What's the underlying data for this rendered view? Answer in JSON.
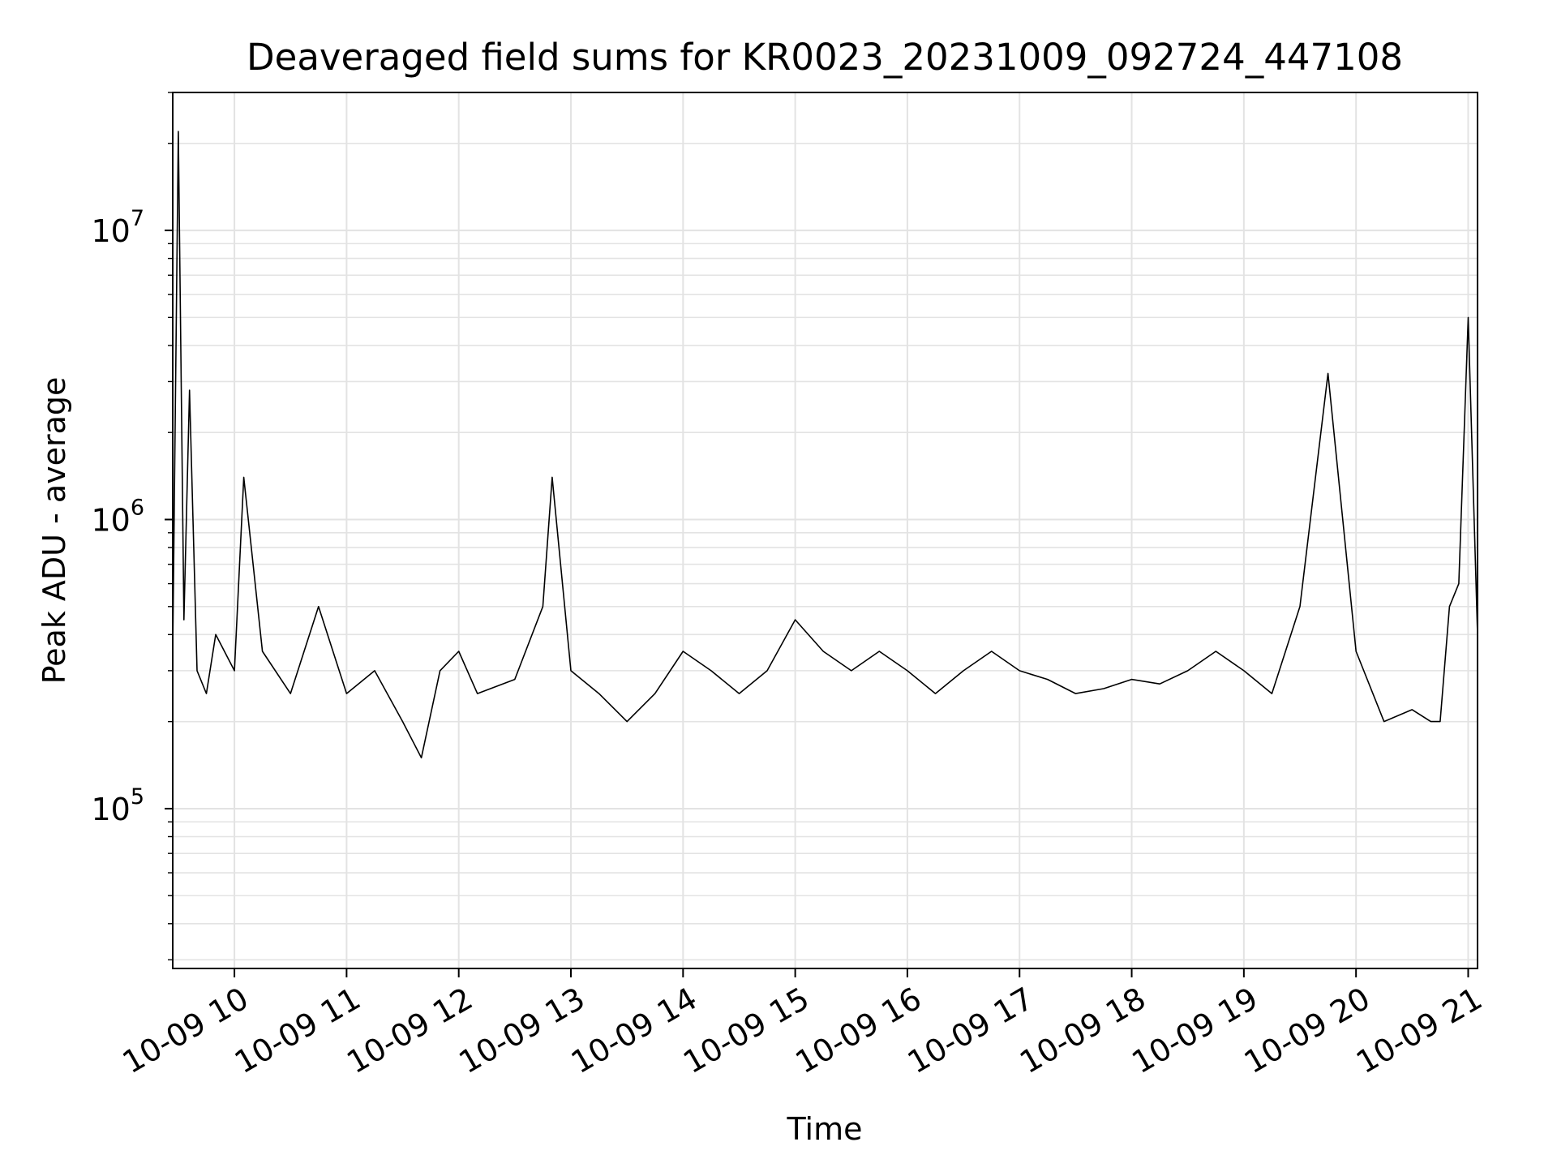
{
  "chart_data": {
    "type": "line",
    "title": "Deaveraged field sums for KR0023_20231009_092724_447108",
    "xlabel": "Time",
    "ylabel": "Peak ADU - average",
    "y_scale": "log",
    "grid": true,
    "x_ticks": [
      "10-09 10",
      "10-09 11",
      "10-09 12",
      "10-09 13",
      "10-09 14",
      "10-09 15",
      "10-09 16",
      "10-09 17",
      "10-09 18",
      "10-09 19",
      "10-09 20",
      "10-09 21"
    ],
    "y_ticks": [
      {
        "base": "10",
        "exp": "5",
        "value": 100000
      },
      {
        "base": "10",
        "exp": "6",
        "value": 1000000
      },
      {
        "base": "10",
        "exp": "7",
        "value": 10000000
      }
    ],
    "xlim": [
      "2023-10-09 09:27",
      "2023-10-09 21:05"
    ],
    "ylim": [
      28000,
      30000000
    ],
    "line_color": "#000000",
    "series": [
      {
        "x": [
          "2023-10-09 09:27",
          "2023-10-09 09:30",
          "2023-10-09 09:33",
          "2023-10-09 09:36",
          "2023-10-09 09:40",
          "2023-10-09 09:45",
          "2023-10-09 09:50",
          "2023-10-09 10:00",
          "2023-10-09 10:05",
          "2023-10-09 10:15",
          "2023-10-09 10:30",
          "2023-10-09 10:45",
          "2023-10-09 11:00",
          "2023-10-09 11:15",
          "2023-10-09 11:30",
          "2023-10-09 11:40",
          "2023-10-09 11:50",
          "2023-10-09 12:00",
          "2023-10-09 12:10",
          "2023-10-09 12:30",
          "2023-10-09 12:45",
          "2023-10-09 12:50",
          "2023-10-09 13:00",
          "2023-10-09 13:15",
          "2023-10-09 13:30",
          "2023-10-09 13:45",
          "2023-10-09 14:00",
          "2023-10-09 14:15",
          "2023-10-09 14:30",
          "2023-10-09 14:45",
          "2023-10-09 15:00",
          "2023-10-09 15:15",
          "2023-10-09 15:30",
          "2023-10-09 15:45",
          "2023-10-09 16:00",
          "2023-10-09 16:15",
          "2023-10-09 16:30",
          "2023-10-09 16:45",
          "2023-10-09 17:00",
          "2023-10-09 17:15",
          "2023-10-09 17:30",
          "2023-10-09 17:45",
          "2023-10-09 18:00",
          "2023-10-09 18:15",
          "2023-10-09 18:30",
          "2023-10-09 18:45",
          "2023-10-09 19:00",
          "2023-10-09 19:15",
          "2023-10-09 19:30",
          "2023-10-09 19:45",
          "2023-10-09 20:00",
          "2023-10-09 20:15",
          "2023-10-09 20:30",
          "2023-10-09 20:40",
          "2023-10-09 20:45",
          "2023-10-09 20:50",
          "2023-10-09 20:55",
          "2023-10-09 21:00",
          "2023-10-09 21:05"
        ],
        "values": [
          350000,
          22000000,
          450000,
          2800000,
          300000,
          250000,
          400000,
          300000,
          1400000,
          350000,
          250000,
          500000,
          250000,
          300000,
          200000,
          150000,
          300000,
          350000,
          250000,
          280000,
          500000,
          1400000,
          300000,
          250000,
          200000,
          250000,
          350000,
          300000,
          250000,
          300000,
          450000,
          350000,
          300000,
          350000,
          300000,
          250000,
          300000,
          350000,
          300000,
          280000,
          250000,
          260000,
          280000,
          270000,
          300000,
          350000,
          300000,
          250000,
          500000,
          3200000,
          350000,
          200000,
          220000,
          200000,
          200000,
          500000,
          600000,
          5000000,
          400000
        ]
      }
    ]
  }
}
